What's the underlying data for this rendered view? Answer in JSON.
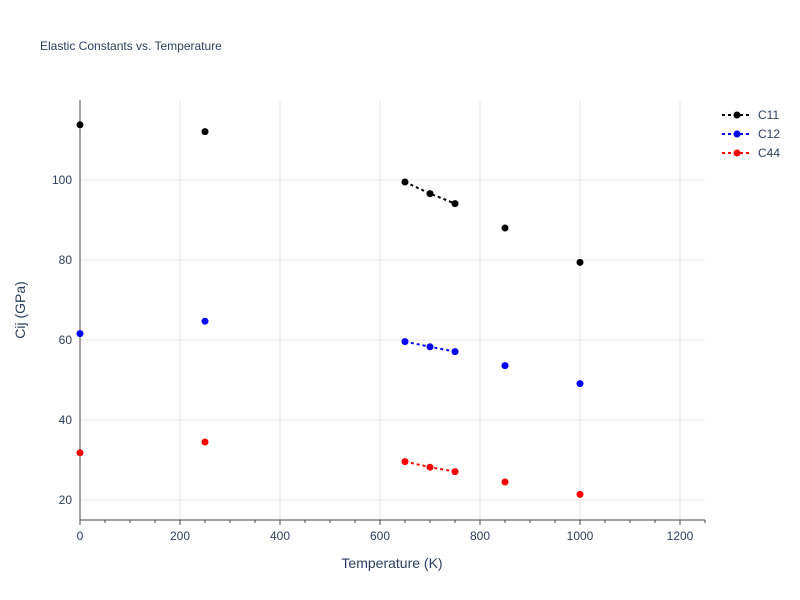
{
  "chart_data": {
    "type": "scatter",
    "title": "Elastic Constants vs. Temperature",
    "xlabel": "Temperature (K)",
    "ylabel": "Cij (GPa)",
    "xlim": [
      0,
      1250
    ],
    "ylim": [
      15,
      120
    ],
    "xticks": [
      0,
      200,
      400,
      600,
      800,
      1000,
      1200
    ],
    "yticks": [
      20,
      40,
      60,
      80,
      100
    ],
    "grid": true,
    "legend_position": "top-right",
    "series": [
      {
        "name": "C11",
        "color": "#000000",
        "x": [
          0,
          250,
          650,
          700,
          750,
          850,
          1000
        ],
        "y": [
          113.8,
          112.1,
          99.5,
          96.6,
          94.1,
          88.0,
          79.4
        ],
        "dotted_segments": [
          [
            650,
            700,
            750
          ]
        ]
      },
      {
        "name": "C12",
        "color": "#0000ff",
        "x": [
          0,
          250,
          650,
          700,
          750,
          850,
          1000
        ],
        "y": [
          61.6,
          64.7,
          59.6,
          58.3,
          57.1,
          53.6,
          49.1
        ],
        "dotted_segments": [
          [
            650,
            700,
            750
          ]
        ]
      },
      {
        "name": "C44",
        "color": "#ff0000",
        "x": [
          0,
          250,
          650,
          700,
          750,
          850,
          1000
        ],
        "y": [
          31.8,
          34.5,
          29.6,
          28.2,
          27.1,
          24.5,
          21.4
        ],
        "dotted_segments": [
          [
            650,
            700,
            750
          ]
        ]
      }
    ]
  }
}
